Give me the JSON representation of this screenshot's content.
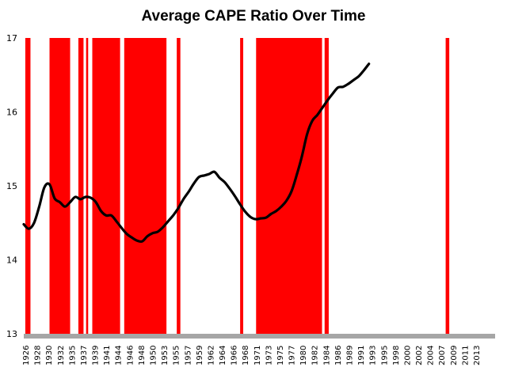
{
  "chart_data": {
    "type": "line",
    "title": "Average CAPE Ratio Over Time",
    "xlabel": "",
    "ylabel": "",
    "xlim": [
      1926,
      2017.5
    ],
    "ylim": [
      13,
      17
    ],
    "yticks": [
      "13",
      "14",
      "15",
      "16",
      "17"
    ],
    "xticks": [
      "1926",
      "1928",
      "1930",
      "1932",
      "1935",
      "1937",
      "1939",
      "1941",
      "1944",
      "1946",
      "1948",
      "1950",
      "1953",
      "1955",
      "1957",
      "1959",
      "1962",
      "1964",
      "1966",
      "1968",
      "1971",
      "1973",
      "1975",
      "1977",
      "1980",
      "1982",
      "1984",
      "1986",
      "1989",
      "1991",
      "1993",
      "1995",
      "1998",
      "2000",
      "2002",
      "2004",
      "2007",
      "2009",
      "2011",
      "2013"
    ],
    "grid": false,
    "colors": {
      "line": "#000000",
      "band": "#ff0000",
      "baseline": "#a6a6a6"
    },
    "shaded_periods": [
      [
        1926.3,
        1927.3
      ],
      [
        1931.0,
        1935.0
      ],
      [
        1936.6,
        1937.6
      ],
      [
        1938.1,
        1938.5
      ],
      [
        1939.3,
        1944.7
      ],
      [
        1945.5,
        1953.7
      ],
      [
        1955.7,
        1956.4
      ],
      [
        1968.0,
        1968.6
      ],
      [
        1971.1,
        1983.9
      ],
      [
        1984.4,
        1985.2
      ],
      [
        2007.9,
        2008.6
      ]
    ],
    "series": [
      {
        "values": [
          [
            1926,
            14.48
          ],
          [
            1927,
            14.42
          ],
          [
            1928,
            14.5
          ],
          [
            1929,
            14.72
          ],
          [
            1930,
            14.98
          ],
          [
            1931,
            15.02
          ],
          [
            1932,
            14.83
          ],
          [
            1933,
            14.78
          ],
          [
            1934,
            14.72
          ],
          [
            1935,
            14.78
          ],
          [
            1936,
            14.85
          ],
          [
            1937,
            14.82
          ],
          [
            1938,
            14.85
          ],
          [
            1939,
            14.84
          ],
          [
            1940,
            14.78
          ],
          [
            1941,
            14.66
          ],
          [
            1942,
            14.6
          ],
          [
            1943,
            14.6
          ],
          [
            1944,
            14.52
          ],
          [
            1945,
            14.43
          ],
          [
            1946,
            14.35
          ],
          [
            1947,
            14.3
          ],
          [
            1948,
            14.26
          ],
          [
            1949,
            14.25
          ],
          [
            1950,
            14.32
          ],
          [
            1951,
            14.36
          ],
          [
            1952,
            14.38
          ],
          [
            1953,
            14.44
          ],
          [
            1954,
            14.52
          ],
          [
            1955,
            14.6
          ],
          [
            1956,
            14.7
          ],
          [
            1957,
            14.82
          ],
          [
            1958,
            14.92
          ],
          [
            1959,
            15.03
          ],
          [
            1960,
            15.12
          ],
          [
            1961,
            15.14
          ],
          [
            1962,
            15.16
          ],
          [
            1963,
            15.19
          ],
          [
            1964,
            15.11
          ],
          [
            1965,
            15.05
          ],
          [
            1966,
            14.96
          ],
          [
            1967,
            14.86
          ],
          [
            1968,
            14.75
          ],
          [
            1969,
            14.65
          ],
          [
            1970,
            14.58
          ],
          [
            1971,
            14.55
          ],
          [
            1972,
            14.56
          ],
          [
            1973,
            14.57
          ],
          [
            1974,
            14.62
          ],
          [
            1975,
            14.66
          ],
          [
            1976,
            14.72
          ],
          [
            1977,
            14.8
          ],
          [
            1978,
            14.93
          ],
          [
            1979,
            15.15
          ],
          [
            1980,
            15.4
          ],
          [
            1981,
            15.7
          ],
          [
            1982,
            15.88
          ],
          [
            1983,
            15.96
          ],
          [
            1984,
            16.06
          ],
          [
            1985,
            16.16
          ],
          [
            1986,
            16.25
          ],
          [
            1987,
            16.33
          ],
          [
            1988,
            16.34
          ],
          [
            1989,
            16.38
          ],
          [
            1990,
            16.43
          ],
          [
            1991,
            16.48
          ],
          [
            1992,
            16.56
          ],
          [
            1993,
            16.65
          ]
        ]
      }
    ]
  }
}
